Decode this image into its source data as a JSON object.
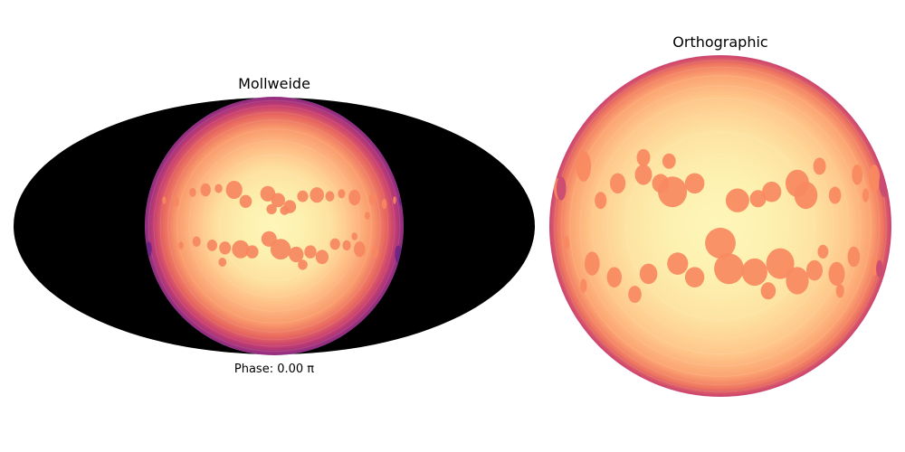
{
  "chart_data": [
    {
      "type": "heatmap",
      "title": "Mollweide",
      "projection": "mollweide",
      "caption": "Phase: 0.00 π",
      "phase_pi": 0.0,
      "background_color": "#000000",
      "colormap": "magma",
      "limb_colors": [
        "#fcfdbf",
        "#fde1a1",
        "#feba80",
        "#f8765c",
        "#d3436e",
        "#a3307e",
        "#712181"
      ]
    },
    {
      "type": "heatmap",
      "title": "Orthographic",
      "projection": "orthographic",
      "colormap": "magma",
      "spot_color": "#f9895f",
      "limb_colors": [
        "#fcf3b5",
        "#fde1a1",
        "#feba80",
        "#f8765c",
        "#d3436e"
      ]
    }
  ]
}
